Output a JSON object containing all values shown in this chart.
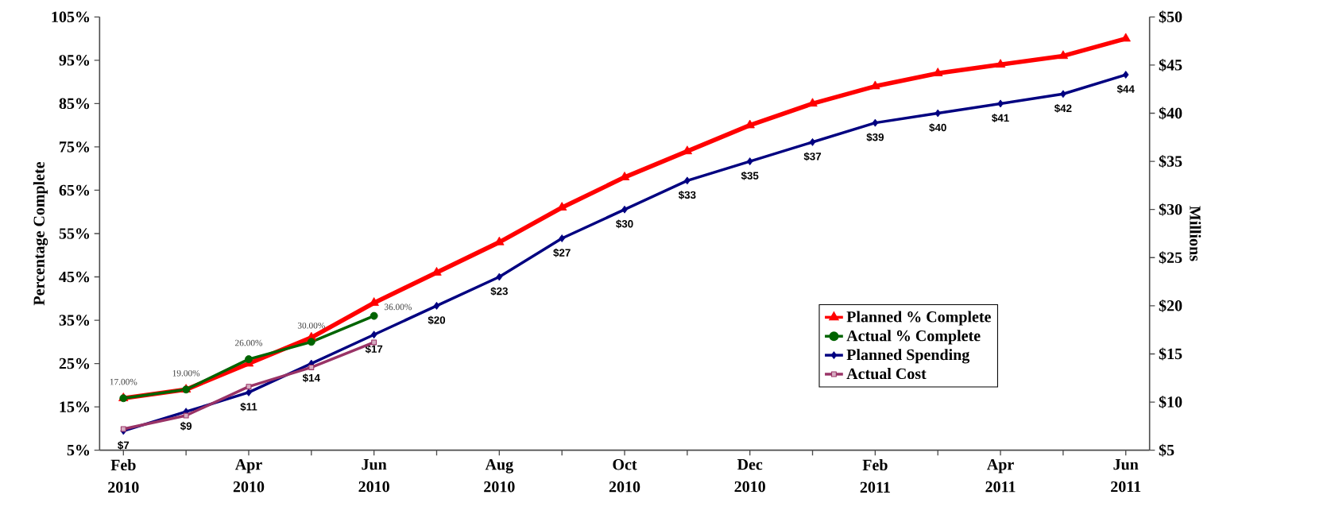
{
  "chart_data": {
    "type": "line",
    "ylabel": "Percentage Complete",
    "y2label": "Millions",
    "categories": [
      "Feb 2010",
      null,
      "Apr 2010",
      null,
      "Jun 2010",
      null,
      "Aug 2010",
      null,
      "Oct 2010",
      null,
      "Dec 2010",
      null,
      "Feb 2011",
      null,
      "Apr 2011",
      null,
      "Jun 2011"
    ],
    "series": [
      {
        "name": "Planned % Complete",
        "color": "#ff0000",
        "marker": "triangle",
        "values": [
          17,
          19,
          25,
          31,
          39,
          46,
          53,
          61,
          68,
          74,
          80,
          85,
          89,
          92,
          94,
          96,
          100
        ]
      },
      {
        "name": "Actual % Complete",
        "color": "#006400",
        "marker": "circle",
        "values": [
          17,
          19,
          26,
          30,
          36,
          null,
          null,
          null,
          null,
          null,
          null,
          null,
          null,
          null,
          null,
          null,
          null
        ],
        "value_labels": [
          "17.00%",
          "19.00%",
          "26.00%",
          "30.00%",
          "36.00%",
          null,
          null,
          null,
          null,
          null,
          null,
          null,
          null,
          null,
          null,
          null,
          null
        ]
      },
      {
        "name": "Planned Spending",
        "color": "#000080",
        "marker": "diamond",
        "axis": "y2",
        "values": [
          7,
          9,
          11,
          14,
          17,
          20,
          23,
          27,
          30,
          33,
          35,
          37,
          39,
          40,
          41,
          42,
          44
        ],
        "value_labels": [
          "$7",
          "$9",
          "$11",
          "$14",
          "$17",
          "$20",
          "$23",
          "$27",
          "$30",
          "$33",
          "$35",
          "$37",
          "$39",
          "$40",
          "$41",
          "$42",
          "$44"
        ]
      },
      {
        "name": "Actual Cost",
        "color": "#993366",
        "marker": "square",
        "axis": "y2",
        "values": [
          7.2,
          8.6,
          11.6,
          13.6,
          16.2,
          null,
          null,
          null,
          null,
          null,
          null,
          null,
          null,
          null,
          null,
          null,
          null
        ]
      }
    ],
    "ylim": [
      5,
      105
    ],
    "yticks": [
      {
        "value": 5,
        "label": "5%"
      },
      {
        "value": 15,
        "label": "15%"
      },
      {
        "value": 25,
        "label": "25%"
      },
      {
        "value": 35,
        "label": "35%"
      },
      {
        "value": 45,
        "label": "45%"
      },
      {
        "value": 55,
        "label": "55%"
      },
      {
        "value": 65,
        "label": "65%"
      },
      {
        "value": 75,
        "label": "75%"
      },
      {
        "value": 85,
        "label": "85%"
      },
      {
        "value": 95,
        "label": "95%"
      },
      {
        "value": 105,
        "label": "105%"
      }
    ],
    "y2lim": [
      5,
      50
    ],
    "y2ticks": [
      {
        "value": 5,
        "label": "$5"
      },
      {
        "value": 10,
        "label": "$10"
      },
      {
        "value": 15,
        "label": "$15"
      },
      {
        "value": 20,
        "label": "$20"
      },
      {
        "value": 25,
        "label": "$25"
      },
      {
        "value": 30,
        "label": "$30"
      },
      {
        "value": 35,
        "label": "$35"
      },
      {
        "value": 40,
        "label": "$40"
      },
      {
        "value": 45,
        "label": "$45"
      },
      {
        "value": 50,
        "label": "$50"
      }
    ],
    "grid": false,
    "legend": "bottom right",
    "line_style": "solid"
  }
}
